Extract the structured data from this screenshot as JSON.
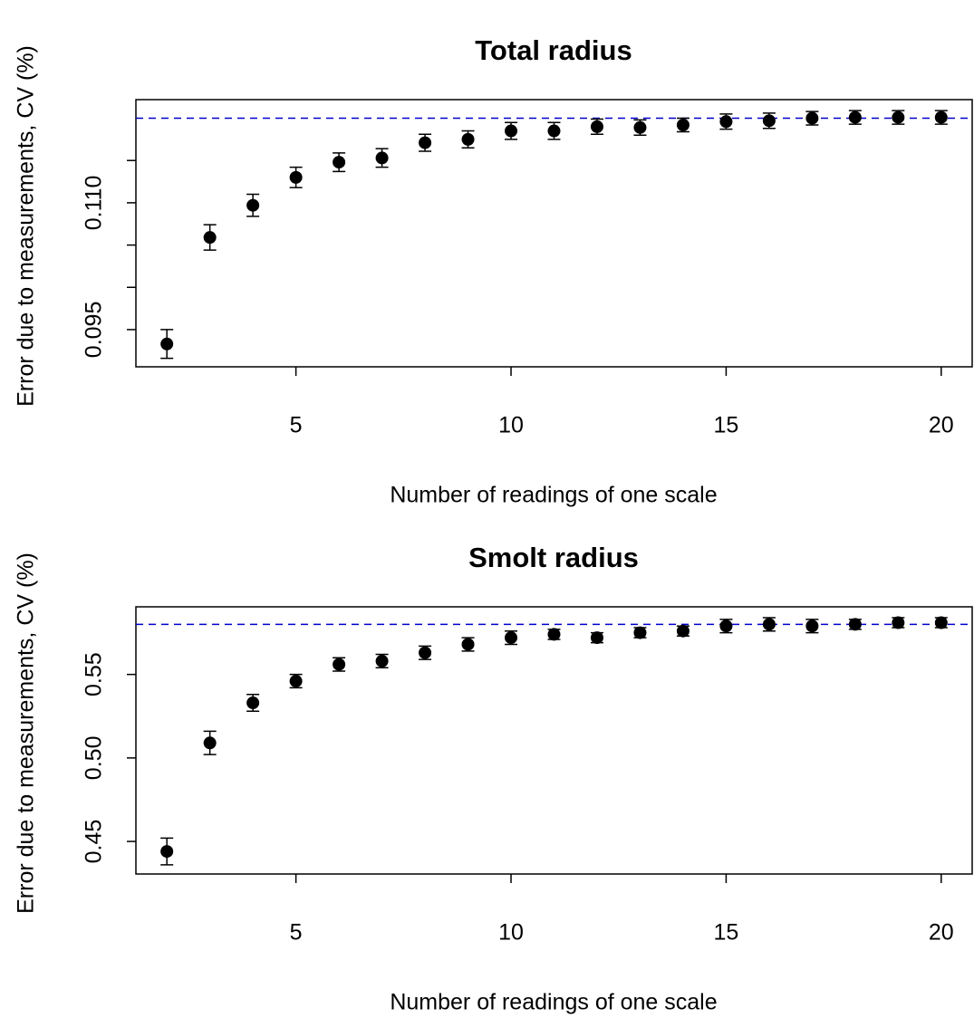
{
  "chart_data": [
    {
      "type": "scatter",
      "title": "Total radius",
      "xlabel": "Number of readings of one scale",
      "ylabel": "Error due to measurements, CV (%)",
      "x": [
        2,
        3,
        4,
        5,
        6,
        7,
        8,
        9,
        10,
        11,
        12,
        13,
        14,
        15,
        16,
        17,
        18,
        19,
        20
      ],
      "values": [
        0.0933,
        0.1059,
        0.1097,
        0.113,
        0.1148,
        0.1153,
        0.1171,
        0.1175,
        0.1185,
        0.1185,
        0.119,
        0.1189,
        0.1192,
        0.1196,
        0.1197,
        0.12,
        0.1201,
        0.1201,
        0.1201
      ],
      "errors": [
        0.0017,
        0.0015,
        0.0013,
        0.0012,
        0.0011,
        0.0011,
        0.001,
        0.001,
        0.001,
        0.001,
        0.0009,
        0.0009,
        0.0008,
        0.0009,
        0.0009,
        0.0008,
        0.0008,
        0.0008,
        0.0008
      ],
      "color": "#000000",
      "hline": 0.12,
      "hline_color": "#0000cc",
      "xlim": [
        1.28,
        20.72
      ],
      "xticks": [
        5,
        10,
        15,
        20
      ],
      "ylim": [
        0.0906,
        0.1222
      ],
      "yticks": [
        0.095,
        {
          "value": 0.11,
          "label": "0.110"
        }
      ],
      "minor_yticks": [
        0.1,
        0.105,
        0.115
      ]
    },
    {
      "type": "scatter",
      "title": "Smolt radius",
      "xlabel": "Number of readings of one scale",
      "ylabel": "Error due to measurements, CV (%)",
      "x": [
        2,
        3,
        4,
        5,
        6,
        7,
        8,
        9,
        10,
        11,
        12,
        13,
        14,
        15,
        16,
        17,
        18,
        19,
        20
      ],
      "values": [
        0.444,
        0.509,
        0.533,
        0.546,
        0.556,
        0.558,
        0.563,
        0.568,
        0.572,
        0.574,
        0.572,
        0.575,
        0.576,
        0.579,
        0.58,
        0.579,
        0.58,
        0.581,
        0.581
      ],
      "errors": [
        0.008,
        0.007,
        0.005,
        0.004,
        0.004,
        0.004,
        0.004,
        0.004,
        0.004,
        0.003,
        0.003,
        0.003,
        0.003,
        0.004,
        0.004,
        0.004,
        0.003,
        0.003,
        0.003
      ],
      "color": "#000000",
      "hline": 0.58,
      "hline_color": "#0000cc",
      "xlim": [
        1.28,
        20.72
      ],
      "xticks": [
        5,
        10,
        15,
        20
      ],
      "ylim": [
        0.4305,
        0.5905
      ],
      "yticks": [
        0.45,
        {
          "value": 0.5,
          "label": "0.50"
        },
        0.55
      ]
    }
  ]
}
